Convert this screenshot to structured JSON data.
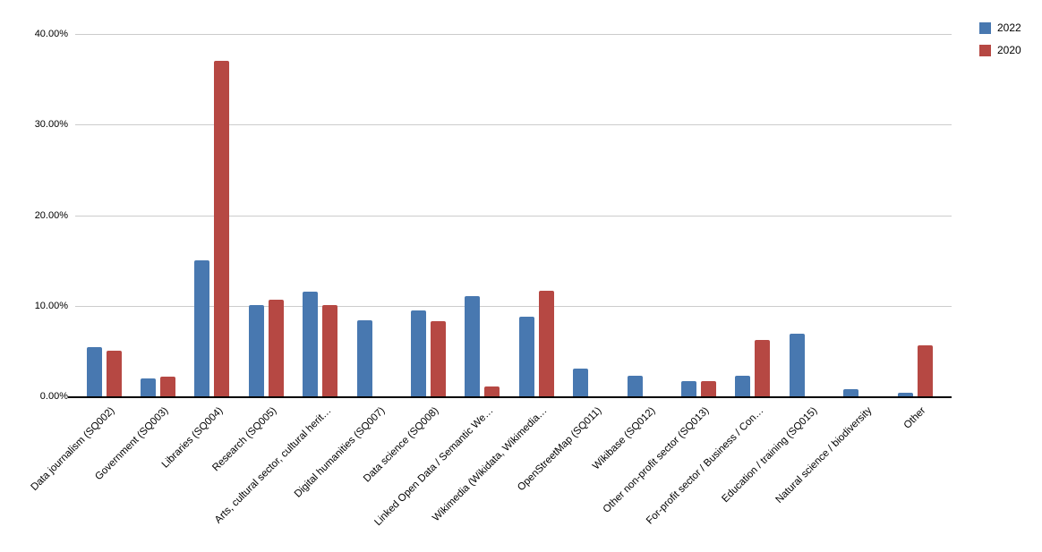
{
  "chart_data": {
    "type": "bar",
    "title": "",
    "xlabel": "",
    "ylabel": "",
    "ylim": [
      0,
      40
    ],
    "grid": true,
    "legend_position": "top-right",
    "value_unit": "percent",
    "yticks": [
      {
        "value": 0,
        "label": "0.00%"
      },
      {
        "value": 10,
        "label": "10.00%"
      },
      {
        "value": 20,
        "label": "20.00%"
      },
      {
        "value": 30,
        "label": "30.00%"
      },
      {
        "value": 40,
        "label": "40.00%"
      }
    ],
    "categories": [
      "Data journalism (SQ002)",
      "Government (SQ003)",
      "Libraries (SQ004)",
      "Research (SQ005)",
      "Arts, cultural sector, cultural herit…",
      "Digital humanities (SQ007)",
      "Data science (SQ008)",
      "Linked Open Data / Semantic We…",
      "Wikimedia (Wikidata, Wikimedia…",
      "OpenStreetMap (SQ011)",
      "Wikibase (SQ012)",
      "Other non-profit sector (SQ013)",
      "For-profit sector / Business / Con…",
      "Education / training (SQ015)",
      "Natural science / biodiversity",
      "Other"
    ],
    "series": [
      {
        "name": "2022",
        "color": "#4878b0",
        "values": [
          5.4,
          2.0,
          15.0,
          10.1,
          11.6,
          8.4,
          9.5,
          11.1,
          8.8,
          3.1,
          2.3,
          1.7,
          2.3,
          6.9,
          0.8,
          0.4
        ]
      },
      {
        "name": "2020",
        "color": "#b64843",
        "values": [
          5.0,
          2.2,
          37.0,
          10.7,
          10.1,
          null,
          8.3,
          1.1,
          11.7,
          null,
          null,
          1.7,
          6.2,
          null,
          null,
          5.6
        ]
      }
    ]
  },
  "legend": {
    "items": [
      {
        "label": "2022",
        "color": "#4878b0"
      },
      {
        "label": "2020",
        "color": "#b64843"
      }
    ]
  },
  "colors": {
    "grid": "#cccccc",
    "axis": "#000000",
    "text": "#000000",
    "background": "#ffffff"
  }
}
